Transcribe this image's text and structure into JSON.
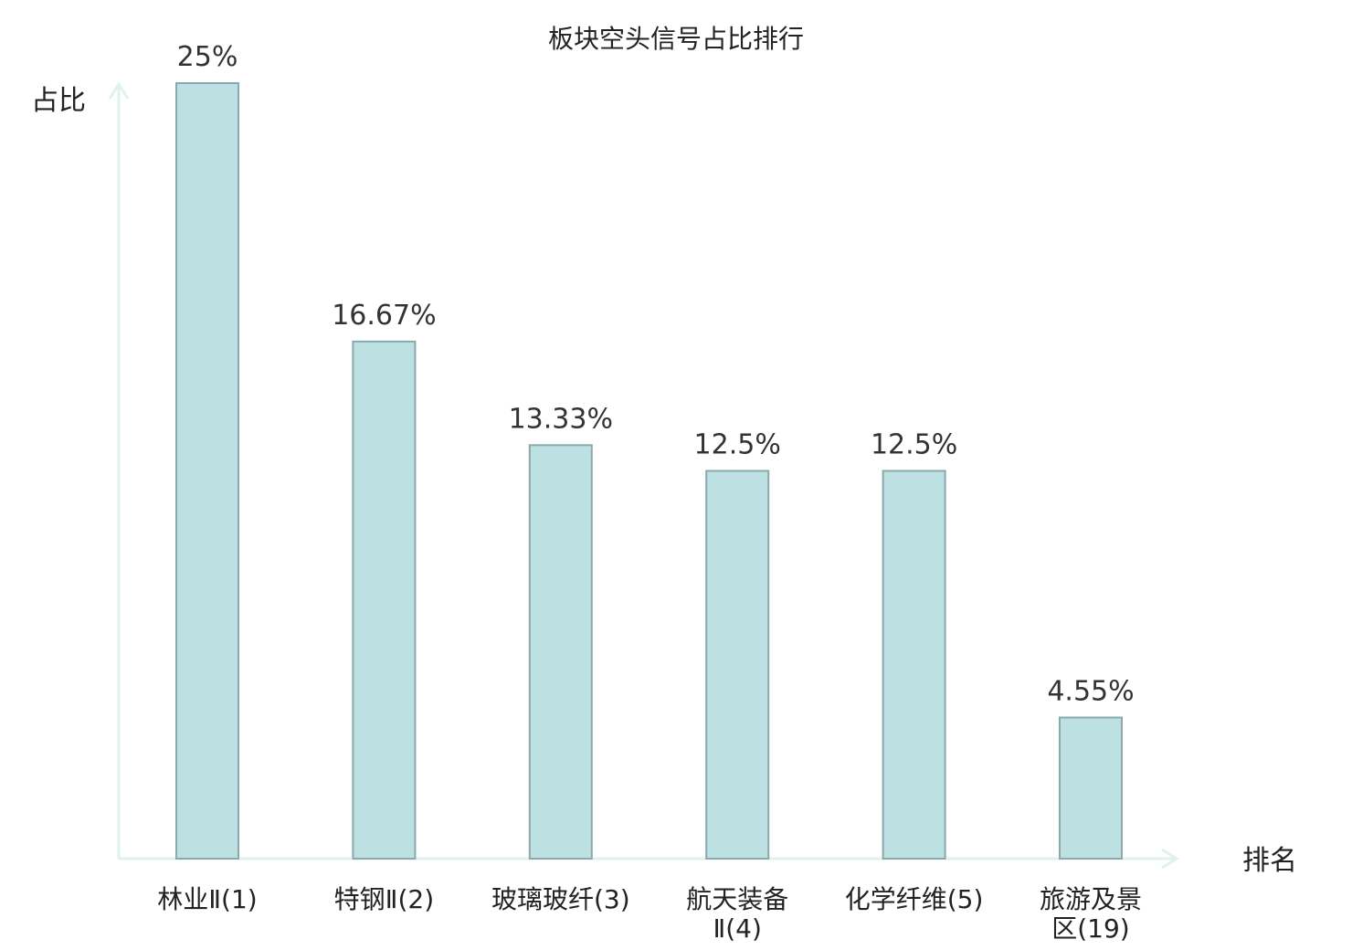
{
  "chart_data": {
    "type": "bar",
    "title": "板块空头信号占比排行",
    "ylabel": "占比",
    "xlabel": "排名",
    "categories": [
      [
        "林业Ⅱ(1)"
      ],
      [
        "特钢Ⅱ(2)"
      ],
      [
        "玻璃玻纤(3)"
      ],
      [
        "航天装备",
        "Ⅱ(4)"
      ],
      [
        "化学纤维(5)"
      ],
      [
        "旅游及景",
        "区(19)"
      ]
    ],
    "values": [
      25,
      16.67,
      13.33,
      12.5,
      12.5,
      4.55
    ],
    "value_labels": [
      "25%",
      "16.67%",
      "13.33%",
      "12.5%",
      "12.5%",
      "4.55%"
    ],
    "highlight_index": 5,
    "ylim": [
      0,
      25
    ],
    "grid": false,
    "colors": {
      "bar_fill": "#bde0e3",
      "bar_stroke": "#8aa9ab",
      "axis": "#dff2ef",
      "highlight_text": "#e02020",
      "text": "#222222"
    }
  }
}
